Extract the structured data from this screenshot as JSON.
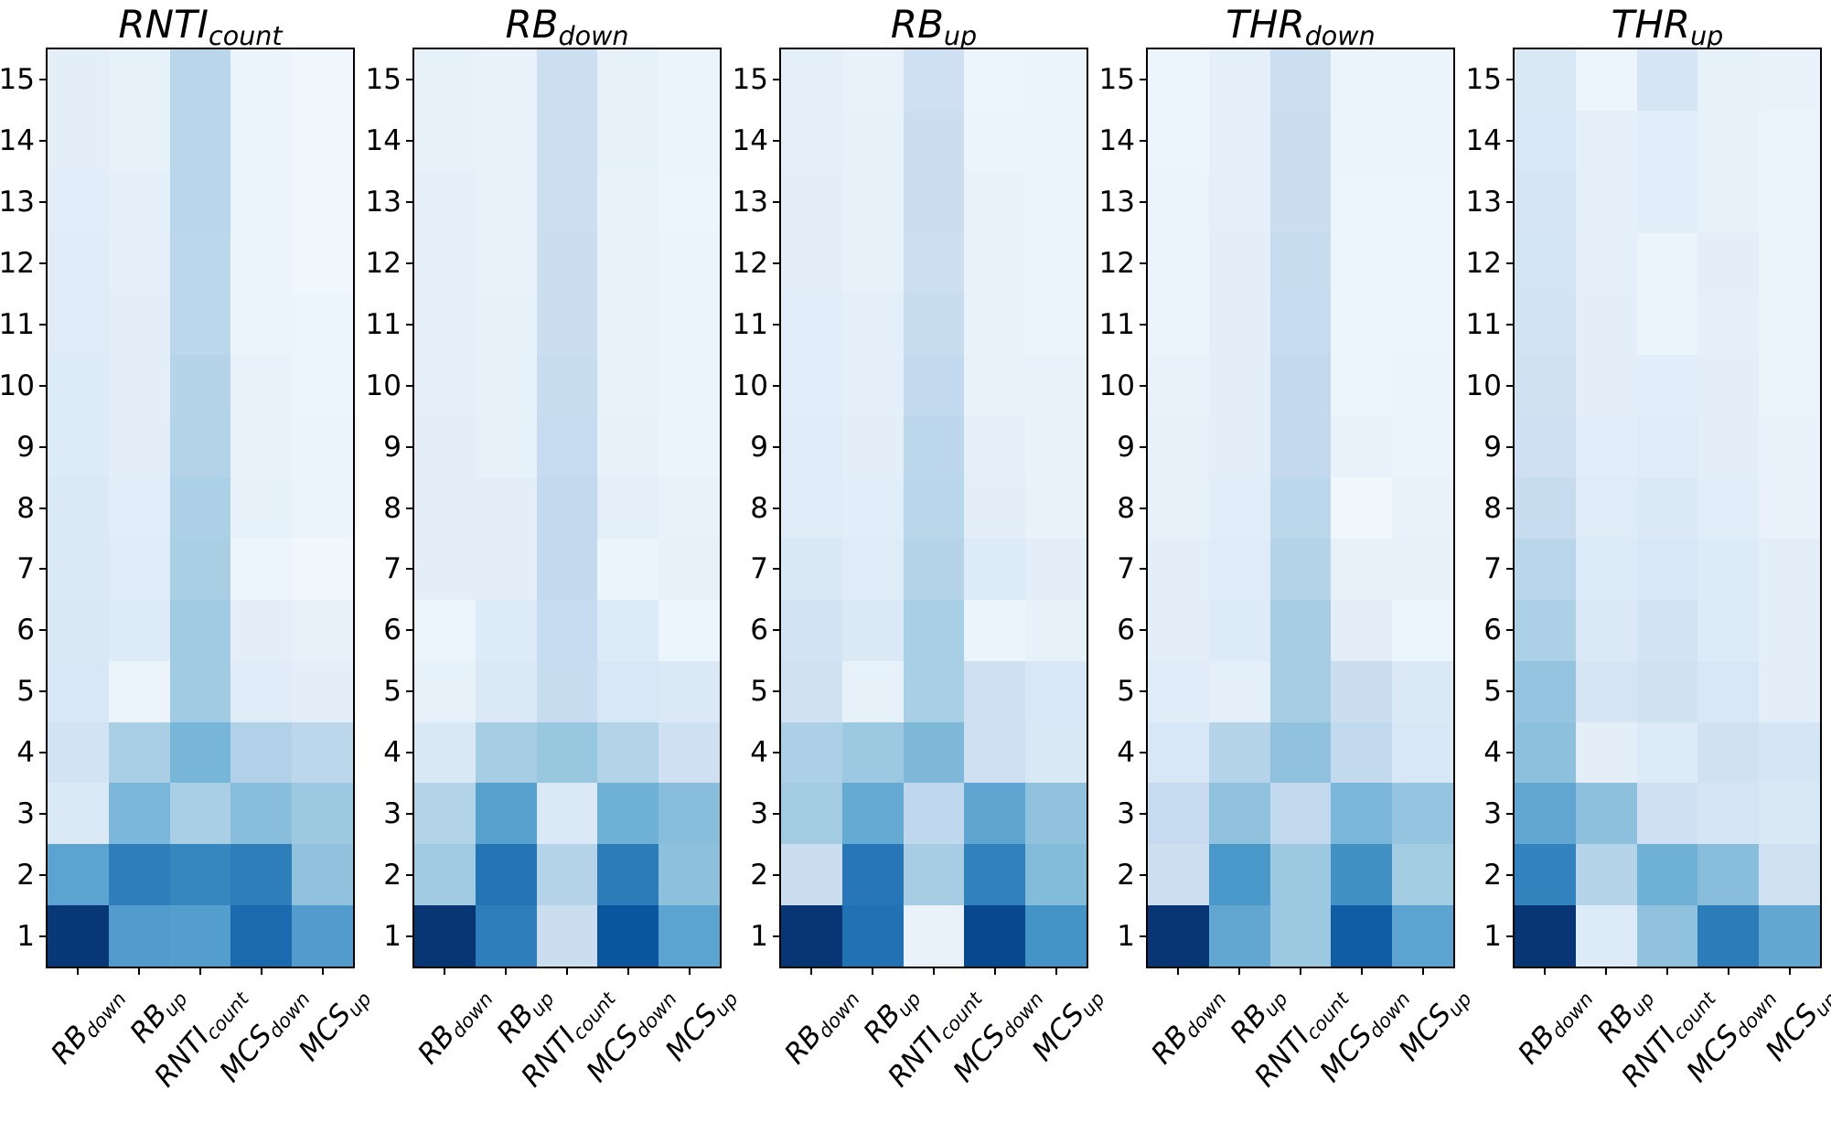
{
  "figure": {
    "background_color": "#ffffff",
    "axes_edge_color": "#000000",
    "tick_color": "#000000"
  },
  "chart_data": {
    "type": "heatmap",
    "colormap": "Blues",
    "value_note": "normalized color intensity 0=lightest 1=darkest, read from Blues colormap",
    "grid": "off",
    "legend": "none",
    "y_ticks": [
      "15",
      "14",
      "13",
      "12",
      "11",
      "10",
      "9",
      "8",
      "7",
      "6",
      "5",
      "4",
      "3",
      "2",
      "1"
    ],
    "x_categories": [
      {
        "main": "RB",
        "sub": "down"
      },
      {
        "main": "RB",
        "sub": "up"
      },
      {
        "main": "RNTI",
        "sub": "count"
      },
      {
        "main": "MCS",
        "sub": "down"
      },
      {
        "main": "MCS",
        "sub": "up"
      }
    ],
    "panels": [
      {
        "title": {
          "main": "RNTI",
          "sub": "count"
        },
        "values": [
          [
            0.1,
            0.08,
            0.29,
            0.06,
            0.04
          ],
          [
            0.1,
            0.08,
            0.29,
            0.06,
            0.04
          ],
          [
            0.11,
            0.09,
            0.29,
            0.06,
            0.04
          ],
          [
            0.12,
            0.09,
            0.28,
            0.06,
            0.04
          ],
          [
            0.12,
            0.1,
            0.28,
            0.06,
            0.05
          ],
          [
            0.13,
            0.1,
            0.3,
            0.07,
            0.05
          ],
          [
            0.13,
            0.1,
            0.31,
            0.07,
            0.06
          ],
          [
            0.14,
            0.11,
            0.33,
            0.08,
            0.06
          ],
          [
            0.14,
            0.12,
            0.34,
            0.05,
            0.04
          ],
          [
            0.15,
            0.13,
            0.37,
            0.1,
            0.08
          ],
          [
            0.16,
            0.06,
            0.37,
            0.12,
            0.1
          ],
          [
            0.19,
            0.34,
            0.47,
            0.32,
            0.28
          ],
          [
            0.14,
            0.46,
            0.34,
            0.43,
            0.38
          ],
          [
            0.55,
            0.7,
            0.67,
            0.7,
            0.41
          ],
          [
            0.97,
            0.58,
            0.57,
            0.78,
            0.58
          ]
        ]
      },
      {
        "title": {
          "main": "RB",
          "sub": "down"
        },
        "values": [
          [
            0.08,
            0.07,
            0.22,
            0.08,
            0.06
          ],
          [
            0.08,
            0.07,
            0.22,
            0.08,
            0.06
          ],
          [
            0.09,
            0.07,
            0.22,
            0.07,
            0.05
          ],
          [
            0.09,
            0.07,
            0.23,
            0.07,
            0.06
          ],
          [
            0.09,
            0.08,
            0.23,
            0.07,
            0.06
          ],
          [
            0.09,
            0.08,
            0.24,
            0.07,
            0.06
          ],
          [
            0.1,
            0.08,
            0.25,
            0.08,
            0.06
          ],
          [
            0.1,
            0.1,
            0.26,
            0.09,
            0.07
          ],
          [
            0.1,
            0.1,
            0.26,
            0.06,
            0.08
          ],
          [
            0.05,
            0.13,
            0.25,
            0.13,
            0.05
          ],
          [
            0.08,
            0.14,
            0.24,
            0.16,
            0.14
          ],
          [
            0.15,
            0.35,
            0.39,
            0.31,
            0.21
          ],
          [
            0.31,
            0.56,
            0.14,
            0.49,
            0.43
          ],
          [
            0.37,
            0.74,
            0.3,
            0.71,
            0.42
          ],
          [
            0.98,
            0.7,
            0.23,
            0.86,
            0.55
          ]
        ]
      },
      {
        "title": {
          "main": "RB",
          "sub": "up"
        },
        "values": [
          [
            0.09,
            0.07,
            0.21,
            0.05,
            0.06
          ],
          [
            0.09,
            0.08,
            0.23,
            0.06,
            0.06
          ],
          [
            0.1,
            0.08,
            0.23,
            0.07,
            0.06
          ],
          [
            0.1,
            0.08,
            0.22,
            0.07,
            0.06
          ],
          [
            0.11,
            0.09,
            0.24,
            0.07,
            0.06
          ],
          [
            0.11,
            0.09,
            0.26,
            0.07,
            0.07
          ],
          [
            0.12,
            0.1,
            0.28,
            0.09,
            0.07
          ],
          [
            0.12,
            0.11,
            0.29,
            0.1,
            0.07
          ],
          [
            0.15,
            0.12,
            0.3,
            0.13,
            0.1
          ],
          [
            0.19,
            0.14,
            0.34,
            0.06,
            0.08
          ],
          [
            0.2,
            0.08,
            0.34,
            0.21,
            0.16
          ],
          [
            0.33,
            0.38,
            0.45,
            0.21,
            0.15
          ],
          [
            0.36,
            0.52,
            0.27,
            0.54,
            0.41
          ],
          [
            0.23,
            0.73,
            0.35,
            0.69,
            0.44
          ],
          [
            0.98,
            0.75,
            0.07,
            0.91,
            0.62
          ]
        ]
      },
      {
        "title": {
          "main": "THR",
          "sub": "down"
        },
        "values": [
          [
            0.05,
            0.09,
            0.22,
            0.06,
            0.06
          ],
          [
            0.05,
            0.09,
            0.23,
            0.06,
            0.06
          ],
          [
            0.06,
            0.09,
            0.23,
            0.05,
            0.05
          ],
          [
            0.06,
            0.1,
            0.24,
            0.05,
            0.05
          ],
          [
            0.06,
            0.1,
            0.25,
            0.05,
            0.05
          ],
          [
            0.07,
            0.1,
            0.26,
            0.05,
            0.06
          ],
          [
            0.08,
            0.1,
            0.26,
            0.07,
            0.06
          ],
          [
            0.08,
            0.11,
            0.28,
            0.04,
            0.07
          ],
          [
            0.1,
            0.12,
            0.3,
            0.08,
            0.08
          ],
          [
            0.1,
            0.13,
            0.35,
            0.1,
            0.05
          ],
          [
            0.12,
            0.09,
            0.35,
            0.23,
            0.14
          ],
          [
            0.16,
            0.3,
            0.41,
            0.26,
            0.16
          ],
          [
            0.25,
            0.41,
            0.26,
            0.46,
            0.4
          ],
          [
            0.22,
            0.6,
            0.38,
            0.63,
            0.36
          ],
          [
            0.98,
            0.53,
            0.38,
            0.83,
            0.55
          ]
        ]
      },
      {
        "title": {
          "main": "THR",
          "sub": "up"
        },
        "values": [
          [
            0.15,
            0.05,
            0.17,
            0.08,
            0.07
          ],
          [
            0.16,
            0.09,
            0.11,
            0.08,
            0.06
          ],
          [
            0.17,
            0.09,
            0.11,
            0.08,
            0.06
          ],
          [
            0.18,
            0.09,
            0.06,
            0.1,
            0.06
          ],
          [
            0.19,
            0.1,
            0.06,
            0.09,
            0.06
          ],
          [
            0.2,
            0.1,
            0.11,
            0.1,
            0.06
          ],
          [
            0.21,
            0.11,
            0.12,
            0.1,
            0.07
          ],
          [
            0.24,
            0.12,
            0.14,
            0.11,
            0.07
          ],
          [
            0.29,
            0.13,
            0.16,
            0.13,
            0.1
          ],
          [
            0.33,
            0.14,
            0.19,
            0.13,
            0.1
          ],
          [
            0.4,
            0.17,
            0.2,
            0.16,
            0.1
          ],
          [
            0.42,
            0.1,
            0.13,
            0.2,
            0.17
          ],
          [
            0.53,
            0.42,
            0.21,
            0.17,
            0.15
          ],
          [
            0.68,
            0.3,
            0.49,
            0.43,
            0.2
          ],
          [
            0.98,
            0.13,
            0.41,
            0.71,
            0.53
          ]
        ]
      }
    ]
  }
}
